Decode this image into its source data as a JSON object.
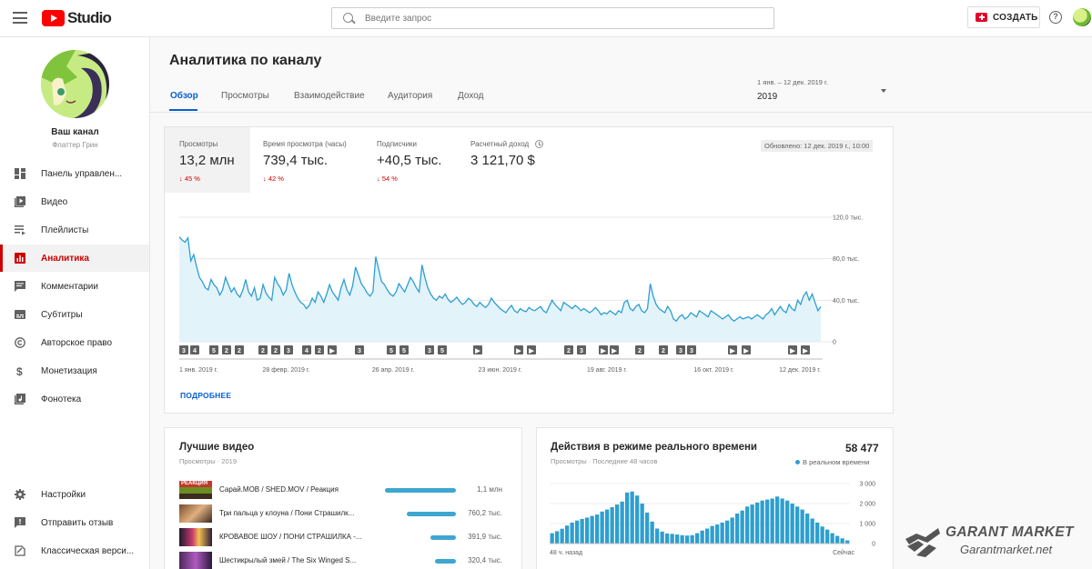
{
  "header": {
    "logo_text": "Studio",
    "search_placeholder": "Введите запрос",
    "create_label": "СОЗДАТЬ",
    "help_glyph": "?"
  },
  "sidebar": {
    "channel_title": "Ваш канал",
    "channel_name": "Флаттер Грин",
    "items": [
      {
        "label": "Панель управлен...",
        "icon": "dashboard-icon",
        "active": false
      },
      {
        "label": "Видео",
        "icon": "video-library-icon",
        "active": false
      },
      {
        "label": "Плейлисты",
        "icon": "playlist-icon",
        "active": false
      },
      {
        "label": "Аналитика",
        "icon": "analytics-icon",
        "active": true
      },
      {
        "label": "Комментарии",
        "icon": "comment-icon",
        "active": false
      },
      {
        "label": "Субтитры",
        "icon": "subtitles-icon",
        "active": false
      },
      {
        "label": "Авторское право",
        "icon": "copyright-icon",
        "active": false
      },
      {
        "label": "Монетизация",
        "icon": "dollar-icon",
        "active": false
      },
      {
        "label": "Фонотека",
        "icon": "audio-library-icon",
        "active": false
      }
    ],
    "bottom_items": [
      {
        "label": "Настройки",
        "icon": "gear-icon"
      },
      {
        "label": "Отправить отзыв",
        "icon": "feedback-icon"
      },
      {
        "label": "Классическая верси...",
        "icon": "classic-icon"
      }
    ]
  },
  "main": {
    "title": "Аналитика по каналу",
    "tabs": [
      "Обзор",
      "Просмотры",
      "Взаимодействие",
      "Аудитория",
      "Доход"
    ],
    "active_tab": "Обзор",
    "date_range_label": "1 янв. – 12 дек. 2019 г.",
    "date_range_value": "2019"
  },
  "overview": {
    "metrics": [
      {
        "label": "Просмотры",
        "value": "13,2 млн",
        "delta": "45 %",
        "selected": true
      },
      {
        "label": "Время просмотра (часы)",
        "value": "739,4 тыс.",
        "delta": "42 %",
        "selected": false
      },
      {
        "label": "Подписчики",
        "value": "+40,5 тыс.",
        "delta": "54 %",
        "selected": false
      },
      {
        "label": "Расчетный доход",
        "value": "3 121,70 $",
        "delta": "",
        "selected": false
      }
    ],
    "updated": "Обновлено: 12 дек. 2019 г., 10:00",
    "more_link": "ПОДРОБНЕЕ"
  },
  "chart_data": [
    {
      "type": "area",
      "title": "",
      "ylim": [
        0,
        120000
      ],
      "y_ticks": [
        "120,0 тыс.",
        "80,0 тыс.",
        "40,0 тыс.",
        "0"
      ],
      "y_tick_values": [
        120000,
        80000,
        40000,
        0
      ],
      "x_ticks": [
        "1 янв. 2019 г.",
        "28 февр. 2019 г.",
        "26 апр. 2019 г.",
        "23 июн. 2019 г.",
        "19 авг. 2019 г.",
        "16 окт. 2019 г.",
        "12 дек. 2019 г."
      ],
      "color": "#2d9fd1",
      "fill": "#e3f3fa",
      "series": [
        {
          "values": [
            101000,
            98000,
            96000,
            100000,
            78000,
            84000,
            72000,
            62000,
            58000,
            52000,
            50000,
            60000,
            55000,
            52000,
            45000,
            50000,
            62000,
            55000,
            48000,
            52000,
            46000,
            43000,
            50000,
            60000,
            48000,
            44000,
            52000,
            40000,
            42000,
            55000,
            47000,
            43000,
            40000,
            62000,
            56000,
            52000,
            45000,
            50000,
            66000,
            55000,
            48000,
            42000,
            38000,
            36000,
            32000,
            35000,
            42000,
            38000,
            48000,
            44000,
            38000,
            46000,
            55000,
            48000,
            44000,
            40000,
            52000,
            60000,
            50000,
            45000,
            54000,
            72000,
            64000,
            56000,
            52000,
            47000,
            44000,
            48000,
            82000,
            70000,
            58000,
            55000,
            50000,
            46000,
            44000,
            48000,
            56000,
            52000,
            48000,
            55000,
            62000,
            58000,
            52000,
            48000,
            74000,
            62000,
            52000,
            46000,
            42000,
            40000,
            44000,
            42000,
            46000,
            41000,
            38000,
            40000,
            43000,
            39000,
            36000,
            38000,
            42000,
            40000,
            36000,
            34000,
            38000,
            35000,
            33000,
            36000,
            42000,
            38000,
            35000,
            32000,
            30000,
            28000,
            32000,
            35000,
            30000,
            28000,
            32000,
            30000,
            29000,
            33000,
            31000,
            30000,
            32000,
            34000,
            30000,
            28000,
            34000,
            40000,
            36000,
            33000,
            30000,
            38000,
            36000,
            34000,
            32000,
            35000,
            33000,
            30000,
            32000,
            30000,
            28000,
            30000,
            33000,
            30000,
            26000,
            28000,
            27000,
            30000,
            28000,
            26000,
            30000,
            28000,
            38000,
            40000,
            32000,
            30000,
            34000,
            36000,
            30000,
            28000,
            32000,
            56000,
            44000,
            36000,
            32000,
            30000,
            28000,
            34000,
            30000,
            22000,
            20000,
            24000,
            26000,
            22000,
            24000,
            28000,
            26000,
            24000,
            30000,
            28000,
            26000,
            24000,
            30000,
            28000,
            26000,
            24000,
            22000,
            24000,
            26000,
            22000,
            20000,
            22000,
            24000,
            22000,
            23000,
            24000,
            22000,
            24000,
            26000,
            24000,
            22000,
            26000,
            28000,
            32000,
            26000,
            30000,
            34000,
            30000,
            28000,
            36000,
            32000,
            30000,
            40000,
            36000,
            44000,
            48000,
            40000,
            46000,
            38000,
            30000,
            34000
          ]
        }
      ]
    },
    {
      "type": "bar",
      "title": "Действия в режиме реального времени",
      "subtitle": "Просмотры · Последние 48 часов",
      "total": "58 477",
      "live_label": "В реальном времени",
      "ylim": [
        0,
        3000
      ],
      "y_ticks": [
        "3 000",
        "2 000",
        "1 000",
        "0"
      ],
      "y_tick_values": [
        3000,
        2000,
        1000,
        0
      ],
      "x_ticks": [
        "48 ч. назад",
        "Сейчас"
      ],
      "color": "#2d9fd1",
      "values": [
        520,
        620,
        740,
        900,
        1050,
        1150,
        1230,
        1300,
        1380,
        1450,
        1600,
        1700,
        1820,
        1950,
        2100,
        2550,
        2600,
        2400,
        2000,
        1550,
        1100,
        750,
        600,
        500,
        480,
        450,
        420,
        400,
        420,
        520,
        650,
        750,
        880,
        950,
        1050,
        1150,
        1300,
        1500,
        1650,
        1850,
        1950,
        2050,
        2150,
        2200,
        2250,
        2350,
        2250,
        2150,
        2000,
        1850,
        1700,
        1500,
        1250,
        1050,
        850,
        700,
        520,
        380,
        260,
        160
      ]
    }
  ],
  "top_videos": {
    "title": "Лучшие видео",
    "subtitle": "Просмотры · 2019",
    "thumb_badge": "РЕАКЦИЯ",
    "items": [
      {
        "title": "Сарай.MOB / SHED.MOV / Реакция",
        "views": "1,1 млн",
        "bar_fraction": 1.0
      },
      {
        "title": "Три пальца у клоуна / Пони Страшилк...",
        "views": "760,2 тыс.",
        "bar_fraction": 0.69
      },
      {
        "title": "КРОВАВОЕ ШОУ / ПОНИ СТРАШИЛКА -...",
        "views": "391,9 тыс.",
        "bar_fraction": 0.36
      },
      {
        "title": "Шестикрылый змей / The Six Winged S...",
        "views": "320,4 тыс.",
        "bar_fraction": 0.29
      }
    ]
  },
  "watermark": {
    "line1": "GARANT MARKET",
    "line2": "Garantmarket.net"
  },
  "colors": {
    "accent": "#cc0000",
    "link": "#065fd4",
    "chart": "#2d9fd1"
  }
}
